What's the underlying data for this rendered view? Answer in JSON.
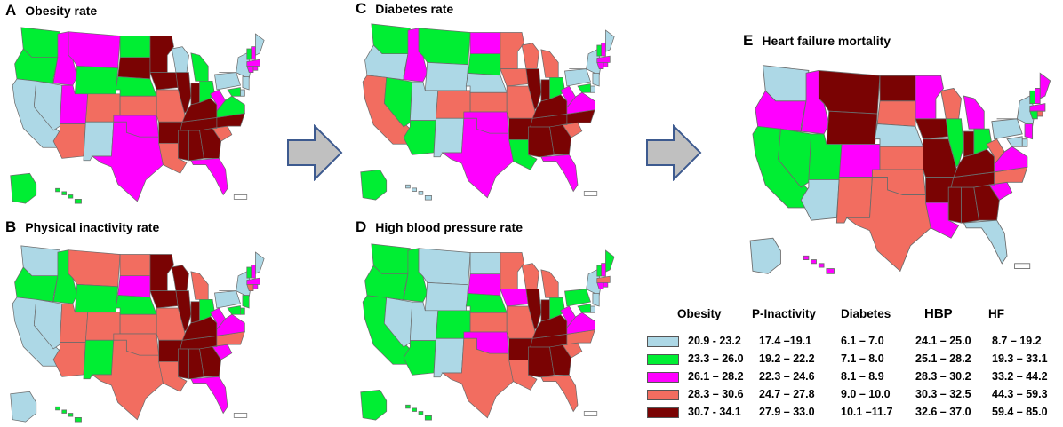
{
  "palette": {
    "c1": "#add8e6",
    "c2": "#00ee33",
    "c3": "#ff00ff",
    "c4": "#f26d60",
    "c5": "#7a0303",
    "arrow_fill": "#c0c0c0",
    "arrow_stroke": "#3d5a8f"
  },
  "panels": [
    {
      "letter": "A",
      "title": "Obesity rate",
      "fills": [
        "c2",
        "c2",
        "c1",
        "c3",
        "c1",
        "c3",
        "c2",
        "c3",
        "c4",
        "c4",
        "c1",
        "c2",
        "c5",
        "c2",
        "c4",
        "c3",
        "c3",
        "c5",
        "c5",
        "c4",
        "c5",
        "c4",
        "c1",
        "c5",
        "c5",
        "c5",
        "c5",
        "c2",
        "c5",
        "c5",
        "c5",
        "c3",
        "c2",
        "c3",
        "c4",
        "c5",
        "c2",
        "c1",
        "c1",
        "c1",
        "c2",
        "c3",
        "c3",
        "c3",
        "c3",
        "c1",
        "c1",
        "c2"
      ]
    },
    {
      "letter": "B",
      "title": "Physical inactivity rate",
      "fills": [
        "c1",
        "c2",
        "c1",
        "c2",
        "c1",
        "c4",
        "c2",
        "c4",
        "c4",
        "c4",
        "c2",
        "c4",
        "c3",
        "c2",
        "c4",
        "c4",
        "c4",
        "c5",
        "c5",
        "c4",
        "c5",
        "c4",
        "c5",
        "c5",
        "c5",
        "c5",
        "c5",
        "c4",
        "c5",
        "c5",
        "c5",
        "c3",
        "c2",
        "c3",
        "c3",
        "c4",
        "c3",
        "c1",
        "c1",
        "c1",
        "c2",
        "c3",
        "c3",
        "c4",
        "c3",
        "c2",
        "c2",
        "c2"
      ]
    },
    {
      "letter": "C",
      "title": "Diabetes rate",
      "fills": [
        "c2",
        "c1",
        "c4",
        "c3",
        "c2",
        "c2",
        "c1",
        "c1",
        "c2",
        "c4",
        "c1",
        "c3",
        "c2",
        "c1",
        "c4",
        "c3",
        "c3",
        "c4",
        "c4",
        "c4",
        "c5",
        "c2",
        "c4",
        "c5",
        "c5",
        "c5",
        "c5",
        "c4",
        "c5",
        "c5",
        "c5",
        "c3",
        "c2",
        "c3",
        "c4",
        "c5",
        "c3",
        "c1",
        "c1",
        "c1",
        "c2",
        "c3",
        "c3",
        "c3",
        "c3",
        "c1",
        "c1",
        "c2"
      ]
    },
    {
      "letter": "D",
      "title": "High blood pressure rate",
      "fills": [
        "c2",
        "c2",
        "c2",
        "c2",
        "c1",
        "c1",
        "c1",
        "c1",
        "c2",
        "c2",
        "c1",
        "c1",
        "c3",
        "c2",
        "c4",
        "c3",
        "c4",
        "c4",
        "c3",
        "c4",
        "c5",
        "c4",
        "c4",
        "c5",
        "c5",
        "c5",
        "c5",
        "c4",
        "c5",
        "c5",
        "c5",
        "c4",
        "c2",
        "c3",
        "c4",
        "c4",
        "c3",
        "c2",
        "c1",
        "c2",
        "c2",
        "c3",
        "c4",
        "c3",
        "c3",
        "c1",
        "c1",
        "c2"
      ]
    },
    {
      "letter": "E",
      "title": "Heart failure mortality",
      "fills": [
        "c1",
        "c3",
        "c2",
        "c3",
        "c2",
        "c5",
        "c5",
        "c2",
        "c1",
        "c3",
        "c4",
        "c5",
        "c4",
        "c1",
        "c4",
        "c4",
        "c4",
        "c3",
        "c5",
        "c5",
        "c5",
        "c3",
        "c4",
        "c2",
        "c5",
        "c5",
        "c5",
        "c3",
        "c5",
        "c5",
        "c5",
        "c1",
        "c2",
        "c4",
        "c3",
        "c4",
        "c3",
        "c1",
        "c1",
        "c3",
        "c2",
        "c3",
        "c3",
        "c2",
        "c4",
        "c3",
        "c1",
        "c1"
      ]
    }
  ],
  "legend": {
    "headers": [
      "Obesity",
      "P-Inactivity",
      "Diabetes",
      "HBP",
      "HF"
    ],
    "rows": [
      {
        "color": "c1",
        "values": [
          "20.9 - 23.2",
          "17.4 –19.1",
          "6.1 – 7.0",
          "24.1 – 25.0",
          "8.7 – 19.2"
        ]
      },
      {
        "color": "c2",
        "values": [
          "23.3 – 26.0",
          "19.2 – 22.2",
          "7.1 – 8.0",
          "25.1 – 28.2",
          "19.3 – 33.1"
        ]
      },
      {
        "color": "c3",
        "values": [
          "26.1 – 28.2",
          "22.3 – 24.6",
          "8.1 – 8.9",
          "28.3 – 30.2",
          "33.2 – 44.2"
        ]
      },
      {
        "color": "c4",
        "values": [
          "28.3 – 30.6",
          "24.7 – 27.8",
          "9.0 – 10.0",
          "30.3 – 32.5",
          "44.3 – 59.3"
        ]
      },
      {
        "color": "c5",
        "values": [
          "30.7 - 34.1",
          "27.9 – 33.0",
          "10.1 –11.7",
          "32.6 – 37.0",
          "59.4 – 85.0"
        ]
      }
    ]
  }
}
